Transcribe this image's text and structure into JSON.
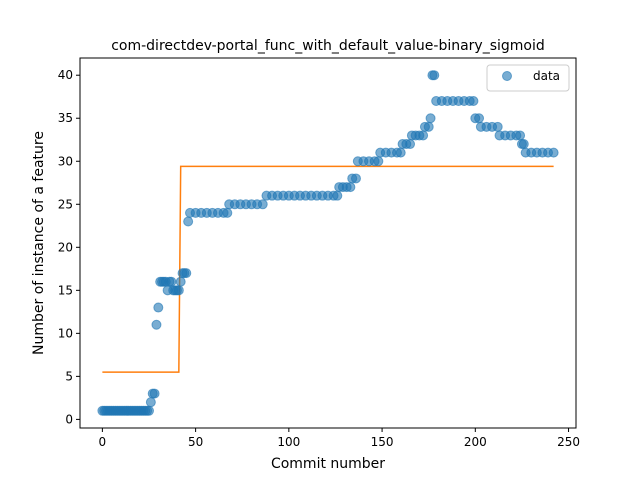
{
  "chart_data": {
    "type": "scatter",
    "title": "com-directdev-portal_func_with_default_value-binary_sigmoid",
    "xlabel": "Commit number",
    "ylabel": "Number of instance of a feature",
    "xlim": [
      -12,
      254
    ],
    "ylim": [
      -1,
      42
    ],
    "xticks": [
      0,
      50,
      100,
      150,
      200,
      250
    ],
    "yticks": [
      0,
      5,
      10,
      15,
      20,
      25,
      30,
      35,
      40
    ],
    "grid": false,
    "legend_position": "top-right",
    "series": [
      {
        "name": "data",
        "kind": "scatter",
        "color": "#1f77b4",
        "points": [
          [
            0,
            1
          ],
          [
            1,
            1
          ],
          [
            2,
            1
          ],
          [
            3,
            1
          ],
          [
            4,
            1
          ],
          [
            5,
            1
          ],
          [
            6,
            1
          ],
          [
            7,
            1
          ],
          [
            8,
            1
          ],
          [
            9,
            1
          ],
          [
            10,
            1
          ],
          [
            11,
            1
          ],
          [
            12,
            1
          ],
          [
            13,
            1
          ],
          [
            14,
            1
          ],
          [
            15,
            1
          ],
          [
            16,
            1
          ],
          [
            17,
            1
          ],
          [
            18,
            1
          ],
          [
            19,
            1
          ],
          [
            20,
            1
          ],
          [
            21,
            1
          ],
          [
            22,
            1
          ],
          [
            23,
            1
          ],
          [
            24,
            1
          ],
          [
            25,
            1
          ],
          [
            26,
            2
          ],
          [
            27,
            3
          ],
          [
            28,
            3
          ],
          [
            29,
            11
          ],
          [
            30,
            13
          ],
          [
            31,
            16
          ],
          [
            32,
            16
          ],
          [
            33,
            16
          ],
          [
            34,
            16
          ],
          [
            35,
            15
          ],
          [
            36,
            16
          ],
          [
            37,
            16
          ],
          [
            38,
            15
          ],
          [
            39,
            15
          ],
          [
            40,
            15
          ],
          [
            41,
            15
          ],
          [
            42,
            16
          ],
          [
            43,
            17
          ],
          [
            44,
            17
          ],
          [
            45,
            17
          ],
          [
            46,
            23
          ],
          [
            47,
            24
          ],
          [
            50,
            24
          ],
          [
            53,
            24
          ],
          [
            56,
            24
          ],
          [
            59,
            24
          ],
          [
            62,
            24
          ],
          [
            65,
            24
          ],
          [
            67,
            24
          ],
          [
            68,
            25
          ],
          [
            71,
            25
          ],
          [
            74,
            25
          ],
          [
            77,
            25
          ],
          [
            80,
            25
          ],
          [
            83,
            25
          ],
          [
            86,
            25
          ],
          [
            88,
            26
          ],
          [
            91,
            26
          ],
          [
            94,
            26
          ],
          [
            97,
            26
          ],
          [
            100,
            26
          ],
          [
            103,
            26
          ],
          [
            106,
            26
          ],
          [
            109,
            26
          ],
          [
            112,
            26
          ],
          [
            115,
            26
          ],
          [
            118,
            26
          ],
          [
            121,
            26
          ],
          [
            124,
            26
          ],
          [
            126,
            26
          ],
          [
            127,
            27
          ],
          [
            129,
            27
          ],
          [
            131,
            27
          ],
          [
            133,
            27
          ],
          [
            134,
            28
          ],
          [
            136,
            28
          ],
          [
            137,
            30
          ],
          [
            140,
            30
          ],
          [
            143,
            30
          ],
          [
            146,
            30
          ],
          [
            148,
            30
          ],
          [
            149,
            31
          ],
          [
            152,
            31
          ],
          [
            155,
            31
          ],
          [
            158,
            31
          ],
          [
            160,
            31
          ],
          [
            161,
            32
          ],
          [
            163,
            32
          ],
          [
            165,
            32
          ],
          [
            166,
            33
          ],
          [
            168,
            33
          ],
          [
            170,
            33
          ],
          [
            172,
            33
          ],
          [
            173,
            34
          ],
          [
            175,
            34
          ],
          [
            176,
            35
          ],
          [
            177,
            40
          ],
          [
            178,
            40
          ],
          [
            179,
            37
          ],
          [
            182,
            37
          ],
          [
            185,
            37
          ],
          [
            188,
            37
          ],
          [
            191,
            37
          ],
          [
            194,
            37
          ],
          [
            197,
            37
          ],
          [
            199,
            37
          ],
          [
            200,
            35
          ],
          [
            202,
            35
          ],
          [
            203,
            34
          ],
          [
            206,
            34
          ],
          [
            209,
            34
          ],
          [
            212,
            34
          ],
          [
            213,
            33
          ],
          [
            216,
            33
          ],
          [
            219,
            33
          ],
          [
            222,
            33
          ],
          [
            224,
            33
          ],
          [
            225,
            32
          ],
          [
            226,
            32
          ],
          [
            227,
            31
          ],
          [
            230,
            31
          ],
          [
            233,
            31
          ],
          [
            236,
            31
          ],
          [
            239,
            31
          ],
          [
            242,
            31
          ]
        ]
      },
      {
        "kind": "line",
        "color": "#ff7f0e",
        "points": [
          [
            0,
            5.5
          ],
          [
            41,
            5.5
          ],
          [
            42,
            29.4
          ],
          [
            242,
            29.4
          ]
        ]
      }
    ]
  }
}
